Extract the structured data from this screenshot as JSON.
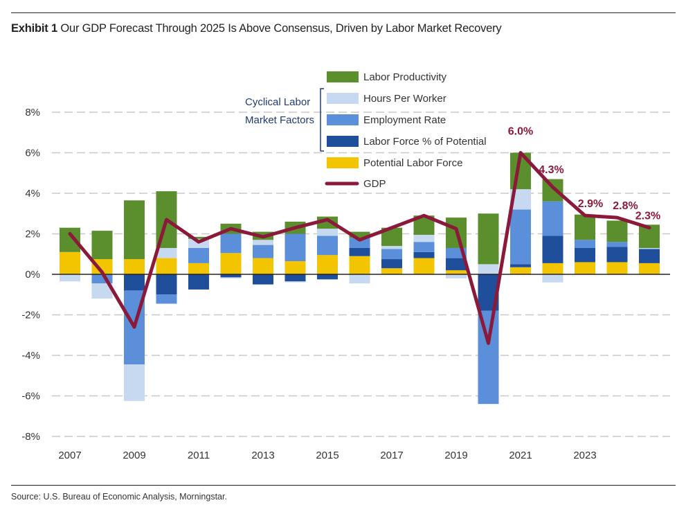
{
  "title": {
    "exhibit": "Exhibit 1",
    "text": "Our GDP Forecast Through 2025 Is Above Consensus, Driven by Labor Market Recovery"
  },
  "source": "Source: U.S. Bureau of Economic Analysis, Morningstar.",
  "legend": {
    "bracket_label_line1": "Cyclical Labor",
    "bracket_label_line2": "Market Factors"
  },
  "chart_data": {
    "type": "bar",
    "stacked": true,
    "title": "Our GDP Forecast Through 2025 Is Above Consensus, Driven by Labor Market Recovery",
    "xlabel": "",
    "ylabel": "",
    "ylim": [
      -8,
      8
    ],
    "yticks": [
      "8%",
      "6%",
      "4%",
      "2%",
      "0%",
      "-2%",
      "-4%",
      "-6%",
      "-8%"
    ],
    "ytick_values": [
      8,
      6,
      4,
      2,
      0,
      -2,
      -4,
      -6,
      -8
    ],
    "categories": [
      2007,
      2008,
      2009,
      2010,
      2011,
      2012,
      2013,
      2014,
      2015,
      2016,
      2017,
      2018,
      2019,
      2020,
      2021,
      2022,
      2023,
      2024,
      2025
    ],
    "xtick_labels": [
      "2007",
      "2009",
      "2011",
      "2013",
      "2015",
      "2017",
      "2019",
      "2021",
      "2023"
    ],
    "grid": "horizontal dashed",
    "legend_position": "top-center",
    "series": [
      {
        "name": "Labor Productivity",
        "color": "#5b8f2d",
        "values": [
          1.2,
          1.4,
          2.9,
          2.8,
          0.1,
          0.5,
          0.4,
          0.6,
          0.6,
          0.3,
          0.9,
          0.95,
          1.5,
          2.5,
          1.8,
          1.1,
          1.25,
          1.05,
          1.15
        ]
      },
      {
        "name": "Hours Per Worker",
        "color": "#c6d9f1",
        "values": [
          -0.35,
          -0.75,
          -1.8,
          0.5,
          0.45,
          -0.05,
          0.25,
          -0.05,
          0.35,
          -0.45,
          0.15,
          0.35,
          -0.2,
          0.5,
          1.0,
          -0.4,
          0.0,
          0.0,
          0.05
        ]
      },
      {
        "name": "Employment Rate",
        "color": "#5b8fd9",
        "values": [
          0.0,
          -0.45,
          -3.65,
          -0.45,
          0.75,
          0.95,
          0.65,
          1.35,
          0.95,
          0.5,
          0.5,
          0.5,
          0.5,
          -4.6,
          2.7,
          1.7,
          0.4,
          0.25,
          0.0
        ]
      },
      {
        "name": "Labor Force % of Potential",
        "color": "#1f4e9a",
        "values": [
          0.0,
          0.0,
          -0.8,
          -1.0,
          -0.75,
          -0.15,
          -0.5,
          -0.35,
          -0.25,
          0.4,
          0.45,
          0.3,
          0.6,
          -1.8,
          0.15,
          1.35,
          0.7,
          0.75,
          0.7
        ]
      },
      {
        "name": "Potential Labor Force",
        "color": "#f2c500",
        "values": [
          1.1,
          0.75,
          0.75,
          0.8,
          0.55,
          1.05,
          0.8,
          0.65,
          0.95,
          0.9,
          0.3,
          0.8,
          0.2,
          0.0,
          0.35,
          0.55,
          0.6,
          0.6,
          0.55
        ]
      },
      {
        "name": "GDP",
        "color": "#8b1a3a",
        "type": "line",
        "values": [
          2.0,
          0.1,
          -2.6,
          2.7,
          1.6,
          2.25,
          1.85,
          2.3,
          2.7,
          1.7,
          2.3,
          2.9,
          2.25,
          -3.4,
          6.0,
          4.3,
          2.9,
          2.8,
          2.3
        ]
      }
    ],
    "annotations": [
      {
        "year": 2021,
        "text": "6.0%"
      },
      {
        "year": 2022,
        "text": "4.3%"
      },
      {
        "year": 2023,
        "text": "2.9%"
      },
      {
        "year": 2024,
        "text": "2.8%"
      },
      {
        "year": 2025,
        "text": "2.3%"
      }
    ]
  }
}
